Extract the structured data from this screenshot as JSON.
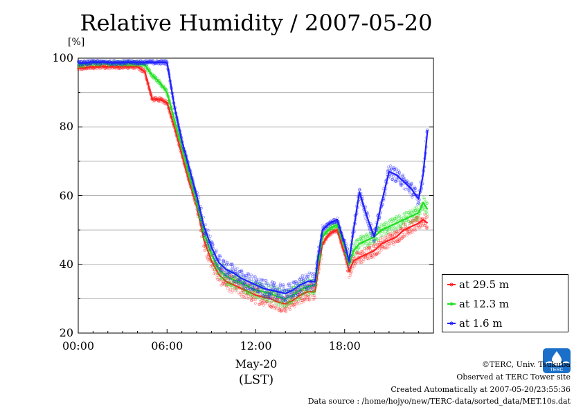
{
  "chart_data": {
    "type": "line",
    "title": "Relative Humidity / 2007-05-20",
    "ylabel": "[%]",
    "xlabel": "(LST)",
    "xdate": "May-20",
    "ylim": [
      20,
      100
    ],
    "xlim_hours": [
      0,
      24
    ],
    "yticks": [
      "20",
      "40",
      "60",
      "80",
      "100"
    ],
    "xticks": [
      "00:00",
      "06:00",
      "12:00",
      "18:00"
    ],
    "grid": true,
    "legend_position": "bottom-right",
    "x_hours": [
      0,
      1,
      2,
      3,
      4,
      4.5,
      5,
      5.5,
      6,
      6.5,
      7,
      7.5,
      8,
      8.5,
      9,
      9.5,
      10,
      10.5,
      11,
      11.5,
      12,
      12.5,
      13,
      13.5,
      14,
      14.5,
      15,
      15.5,
      16,
      16.2,
      16.5,
      17,
      17.5,
      18,
      18.3,
      18.6,
      19,
      19.5,
      20,
      20.5,
      21,
      21.5,
      22,
      22.5,
      23,
      23.3,
      23.6
    ],
    "series": [
      {
        "name": "at 29.5 m",
        "color": "#ff2020",
        "values": [
          97,
          97.5,
          97.5,
          97.5,
          97.5,
          96,
          88,
          88,
          87,
          80,
          72,
          64,
          57,
          47,
          41,
          37,
          35,
          34,
          33,
          32,
          31,
          30.5,
          30,
          29,
          28.5,
          29.5,
          31,
          32,
          32,
          38,
          46,
          49,
          50,
          43,
          38,
          41,
          42,
          43,
          44,
          46,
          47,
          48,
          50,
          51,
          52,
          53,
          52
        ]
      },
      {
        "name": "at 12.3 m",
        "color": "#20e020",
        "values": [
          98,
          98.5,
          98.5,
          98.5,
          98.5,
          98,
          95,
          93,
          90,
          82,
          74,
          66,
          58,
          49,
          43,
          38.5,
          36.5,
          35.5,
          34.5,
          33.5,
          32.5,
          32,
          31.5,
          30.5,
          30,
          31,
          32.5,
          33.5,
          34,
          40,
          48,
          50.5,
          51.5,
          45,
          40,
          44,
          46,
          47,
          48,
          50,
          51,
          52,
          53,
          54,
          55,
          58,
          56
        ]
      },
      {
        "name": "at 1.6 m",
        "color": "#2020ff",
        "values": [
          98.5,
          98.8,
          98.8,
          98.8,
          98.8,
          98.8,
          98.8,
          98.8,
          98.8,
          86,
          76,
          68,
          60,
          51,
          45,
          40.5,
          38.5,
          37.5,
          36,
          35,
          34,
          33,
          32.5,
          32,
          31.5,
          32.5,
          34,
          35,
          35,
          42,
          50,
          52,
          53,
          46,
          41,
          50,
          61,
          54,
          48,
          58,
          67,
          66,
          64,
          62,
          59,
          66,
          79
        ]
      }
    ]
  },
  "legend": [
    {
      "label": "at 29.5 m",
      "color": "#ff2020"
    },
    {
      "label": "at 12.3 m",
      "color": "#20e020"
    },
    {
      "label": "at 1.6 m",
      "color": "#2020ff"
    }
  ],
  "footer": {
    "copyright": "©TERC, Univ. Tsukuba",
    "site": "Observed at TERC Tower site",
    "created": "Created Automatically at 2007-05-20/23:55:36",
    "source": "Data source : /home/hojyo/new/TERC-data/sorted_data/MET.10s.dat"
  },
  "logo_text": "TERC"
}
